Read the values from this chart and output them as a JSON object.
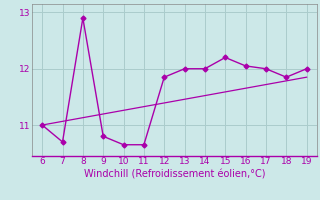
{
  "x": [
    6,
    7,
    8,
    9,
    10,
    11,
    12,
    13,
    14,
    15,
    16,
    17,
    18,
    19
  ],
  "y": [
    11.0,
    10.7,
    12.9,
    10.8,
    10.65,
    10.65,
    11.85,
    12.0,
    12.0,
    12.2,
    12.05,
    12.0,
    11.85,
    12.0
  ],
  "trend_x": [
    6,
    19
  ],
  "trend_y": [
    11.0,
    11.85
  ],
  "line_color": "#aa00aa",
  "bg_color": "#cce8e8",
  "grid_color": "#aacccc",
  "xlabel": "Windchill (Refroidissement éolien,°C)",
  "xlim": [
    5.5,
    19.5
  ],
  "ylim": [
    10.45,
    13.15
  ],
  "yticks": [
    11,
    12,
    13
  ],
  "xticks": [
    6,
    7,
    8,
    9,
    10,
    11,
    12,
    13,
    14,
    15,
    16,
    17,
    18,
    19
  ]
}
